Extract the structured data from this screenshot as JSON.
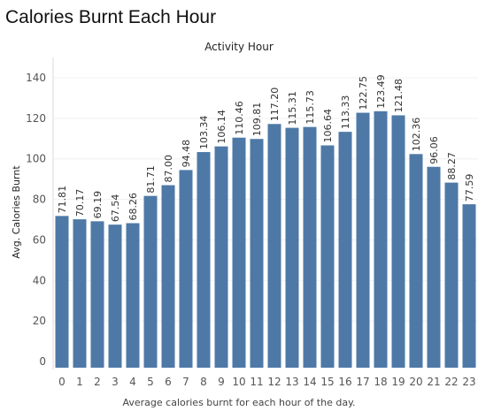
{
  "page": {
    "title": "Calories Burnt Each Hour"
  },
  "chart_data": {
    "type": "bar",
    "title": "Activity Hour",
    "xlabel": "Average calories burnt for each hour of the day.",
    "ylabel": "Avg. Calories Burnt",
    "categories": [
      "0",
      "1",
      "2",
      "3",
      "4",
      "5",
      "6",
      "7",
      "8",
      "9",
      "10",
      "11",
      "12",
      "13",
      "14",
      "15",
      "16",
      "17",
      "18",
      "19",
      "20",
      "21",
      "22",
      "23"
    ],
    "values": [
      71.81,
      70.17,
      69.19,
      67.54,
      68.26,
      81.71,
      87.0,
      94.48,
      103.34,
      106.14,
      110.46,
      109.81,
      117.2,
      115.31,
      115.73,
      106.64,
      113.33,
      122.75,
      123.49,
      121.48,
      102.36,
      96.06,
      88.27,
      77.59
    ],
    "value_labels": [
      "71.81",
      "70.17",
      "69.19",
      "67.54",
      "68.26",
      "81.71",
      "87.00",
      "94.48",
      "103.34",
      "106.14",
      "110.46",
      "109.81",
      "117.20",
      "115.31",
      "115.73",
      "106.64",
      "113.33",
      "122.75",
      "123.49",
      "121.48",
      "102.36",
      "96.06",
      "88.27",
      "77.59"
    ],
    "yticks": [
      0,
      20,
      40,
      60,
      80,
      100,
      120,
      140
    ],
    "ylim": [
      0,
      140
    ],
    "grid": true,
    "bar_color": "#4e79a7"
  }
}
